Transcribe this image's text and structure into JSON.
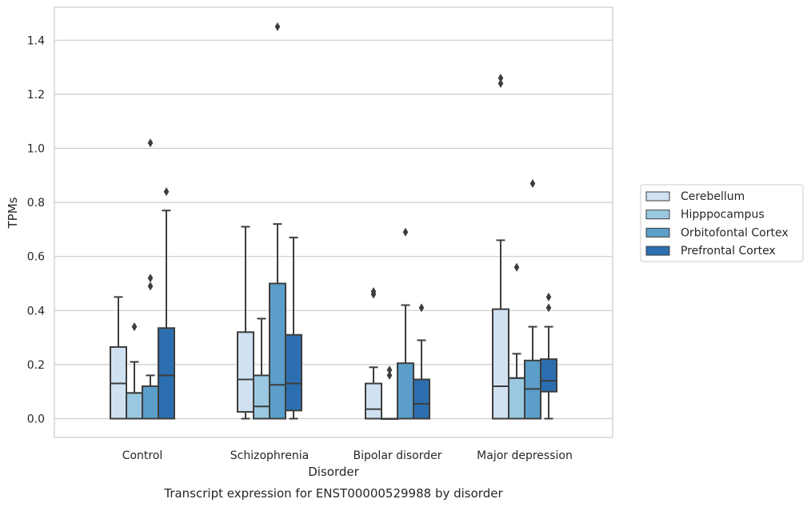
{
  "chart_data": {
    "type": "box",
    "title": "",
    "caption": "Transcript expression for ENST00000529988 by disorder",
    "xlabel": "Disorder",
    "ylabel": "TPMs",
    "ylim": [
      -0.07,
      1.53
    ],
    "yticks": [
      "0.0",
      "0.2",
      "0.4",
      "0.6",
      "0.8",
      "1.0",
      "1.2",
      "1.4"
    ],
    "grid": "horizontal",
    "legend_position": "right",
    "categories": [
      "Control",
      "Schizophrenia",
      "Bipolar disorder",
      "Major depression"
    ],
    "series": [
      {
        "name": "Cerebellum",
        "color": "#d0e1f2",
        "boxes": [
          {
            "min": 0.0,
            "q1": 0.0,
            "median": 0.13,
            "q3": 0.265,
            "max": 0.45,
            "outliers": []
          },
          {
            "min": 0.0,
            "q1": 0.025,
            "median": 0.145,
            "q3": 0.32,
            "max": 0.71,
            "outliers": []
          },
          {
            "min": 0.0,
            "q1": 0.0,
            "median": 0.035,
            "q3": 0.13,
            "max": 0.19,
            "outliers": [
              0.46,
              0.47
            ]
          },
          {
            "min": 0.0,
            "q1": 0.0,
            "median": 0.12,
            "q3": 0.405,
            "max": 0.66,
            "outliers": [
              1.24,
              1.26
            ]
          }
        ]
      },
      {
        "name": "Hipppocampus",
        "color": "#9ac8e0",
        "boxes": [
          {
            "min": 0.0,
            "q1": 0.0,
            "median": 0.095,
            "q3": 0.095,
            "max": 0.21,
            "outliers": [
              0.34
            ]
          },
          {
            "min": 0.0,
            "q1": 0.0,
            "median": 0.045,
            "q3": 0.16,
            "max": 0.37,
            "outliers": []
          },
          {
            "min": 0.0,
            "q1": 0.0,
            "median": 0.0,
            "q3": 0.0,
            "max": 0.0,
            "outliers": [
              0.16,
              0.18
            ]
          },
          {
            "min": 0.0,
            "q1": 0.0,
            "median": 0.15,
            "q3": 0.15,
            "max": 0.24,
            "outliers": [
              0.56
            ]
          }
        ]
      },
      {
        "name": "Orbitofontal Cortex",
        "color": "#5a9ec9",
        "boxes": [
          {
            "min": 0.0,
            "q1": 0.0,
            "median": 0.12,
            "q3": 0.12,
            "max": 0.16,
            "outliers": [
              0.49,
              0.52,
              1.02
            ]
          },
          {
            "min": 0.0,
            "q1": 0.0,
            "median": 0.125,
            "q3": 0.5,
            "max": 0.72,
            "outliers": [
              1.45
            ]
          },
          {
            "min": 0.0,
            "q1": 0.0,
            "median": 0.0,
            "q3": 0.205,
            "max": 0.42,
            "outliers": [
              0.69
            ]
          },
          {
            "min": 0.0,
            "q1": 0.0,
            "median": 0.11,
            "q3": 0.215,
            "max": 0.34,
            "outliers": [
              0.87
            ]
          }
        ]
      },
      {
        "name": "Prefrontal Cortex",
        "color": "#2c6fb0",
        "boxes": [
          {
            "min": 0.0,
            "q1": 0.0,
            "median": 0.16,
            "q3": 0.335,
            "max": 0.77,
            "outliers": [
              0.84
            ]
          },
          {
            "min": 0.0,
            "q1": 0.03,
            "median": 0.13,
            "q3": 0.31,
            "max": 0.67,
            "outliers": []
          },
          {
            "min": 0.0,
            "q1": 0.0,
            "median": 0.055,
            "q3": 0.145,
            "max": 0.29,
            "outliers": [
              0.41
            ]
          },
          {
            "min": 0.0,
            "q1": 0.1,
            "median": 0.14,
            "q3": 0.22,
            "max": 0.34,
            "outliers": [
              0.41,
              0.45
            ]
          }
        ]
      }
    ]
  }
}
